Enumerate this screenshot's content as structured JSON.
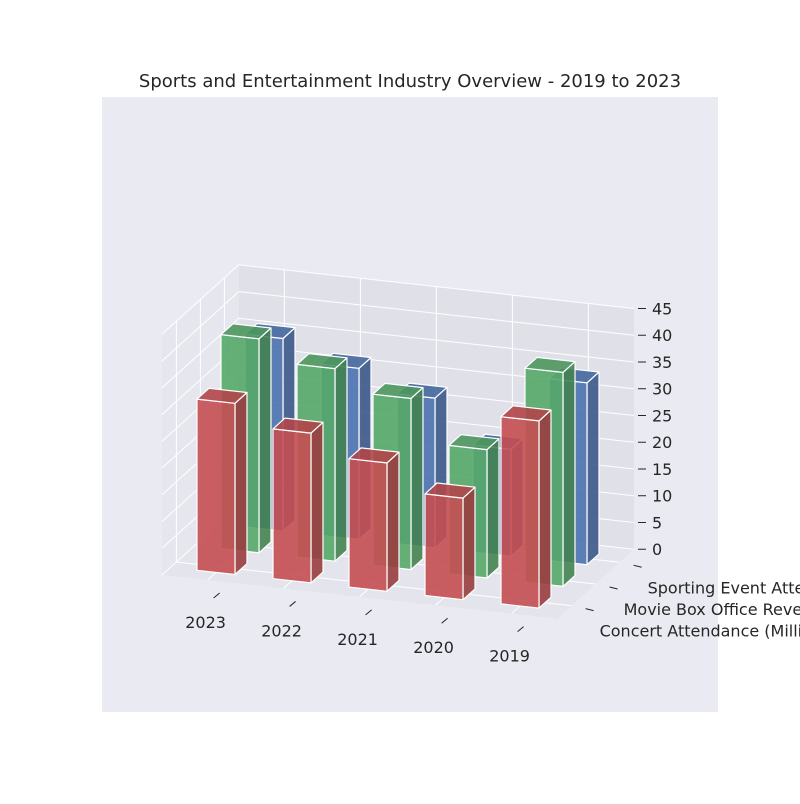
{
  "chart_data": {
    "type": "bar",
    "title": "Sports and Entertainment Industry Overview - 2019 to 2023",
    "categories": [
      "2023",
      "2022",
      "2021",
      "2020",
      "2019"
    ],
    "series": [
      {
        "name": "Concert Attendance (Millions)",
        "values": [
          32,
          28,
          24,
          19,
          35
        ],
        "color": "#c44e52"
      },
      {
        "name": "Movie Box Office Revenue",
        "values": [
          40,
          36,
          32,
          24,
          40
        ],
        "color": "#55a868"
      },
      {
        "name": "Sporting Event Attendance",
        "values": [
          36,
          32,
          28,
          20,
          34
        ],
        "color": "#4c72b0"
      }
    ],
    "zlim": [
      0,
      45
    ],
    "z_ticks": [
      "0",
      "5",
      "10",
      "15",
      "20",
      "25",
      "30",
      "35",
      "40",
      "45"
    ],
    "grid": true,
    "colors": {
      "pane": "#eaeaf2",
      "grid": "#ffffff",
      "text": "#262626"
    }
  }
}
